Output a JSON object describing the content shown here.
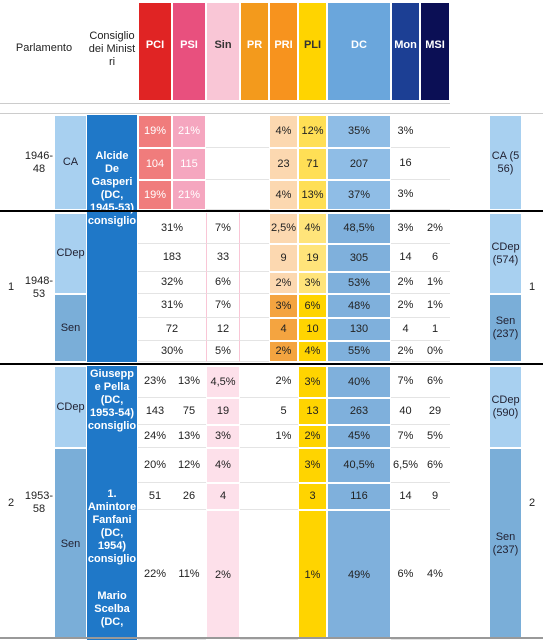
{
  "header": {
    "parlamento": "Parlamento",
    "consiglio": "Consiglio dei Ministri",
    "parties": [
      "PCI",
      "PSI",
      "Sin",
      "PR",
      "PRI",
      "PLI",
      "DC",
      "Mon",
      "MSI"
    ]
  },
  "sections": [
    {
      "years": "1946-48",
      "chambers": [
        {
          "name": "CA",
          "seats": "CA (556)",
          "rows": [
            [
              "19%",
              "21%",
              null,
              null,
              "4%",
              "12%",
              "35%",
              "3%",
              null
            ],
            [
              104,
              115,
              null,
              null,
              23,
              71,
              207,
              16,
              null
            ],
            [
              "19%",
              "21%",
              null,
              null,
              "4%",
              "13%",
              "37%",
              "3%",
              null
            ]
          ]
        }
      ]
    },
    {
      "number": 1,
      "years": "1948-53",
      "chambers": [
        {
          "name": "CDep",
          "seats": "CDep (574)",
          "pci_psi_joined": true,
          "rows": [
            [
              "31%",
              null,
              "7%",
              null,
              "2,5%",
              "4%",
              "48,5%",
              "3%",
              "2%"
            ],
            [
              183,
              null,
              33,
              null,
              9,
              19,
              305,
              14,
              6
            ],
            [
              "32%",
              null,
              "6%",
              null,
              "2%",
              "3%",
              "53%",
              "2%",
              "1%"
            ]
          ]
        },
        {
          "name": "Sen",
          "seats": "Sen (237)",
          "pci_psi_joined": true,
          "rows": [
            [
              "31%",
              null,
              "7%",
              null,
              "3%",
              "6%",
              "48%",
              "2%",
              "1%"
            ],
            [
              72,
              null,
              12,
              null,
              4,
              10,
              130,
              4,
              1
            ],
            [
              "30%",
              null,
              "5%",
              null,
              "2%",
              "4%",
              "55%",
              "2%",
              "0%"
            ]
          ]
        }
      ]
    },
    {
      "number": 2,
      "years": "1953-58",
      "chambers": [
        {
          "name": "CDep",
          "seats": "CDep (590)",
          "rows": [
            [
              "23%",
              "13%",
              "4,5%",
              null,
              "2%",
              "3%",
              "40%",
              "7%",
              "6%"
            ],
            [
              143,
              75,
              19,
              null,
              5,
              13,
              263,
              40,
              29
            ],
            [
              "24%",
              "13%",
              "3%",
              null,
              "1%",
              "2%",
              "45%",
              "7%",
              "5%"
            ]
          ]
        },
        {
          "name": "Sen",
          "seats": "Sen (237)",
          "rows": [
            [
              "20%",
              "12%",
              "4%",
              null,
              null,
              "3%",
              "40,5%",
              "6,5%",
              "6%"
            ],
            [
              51,
              26,
              4,
              null,
              null,
              3,
              116,
              14,
              9
            ],
            [
              "22%",
              "11%",
              "2%",
              null,
              null,
              "1%",
              "49%",
              "6%",
              "4%"
            ]
          ]
        }
      ]
    }
  ],
  "governments": [
    [
      "Alcide De Gasperi (DC, 1945-53) consiglio"
    ],
    [
      "Giuseppe Pella (DC, 1953-54) consiglio",
      "1. Amintore Fanfani (DC, 1954) consiglio",
      "Mario Scelba (DC,"
    ]
  ]
}
